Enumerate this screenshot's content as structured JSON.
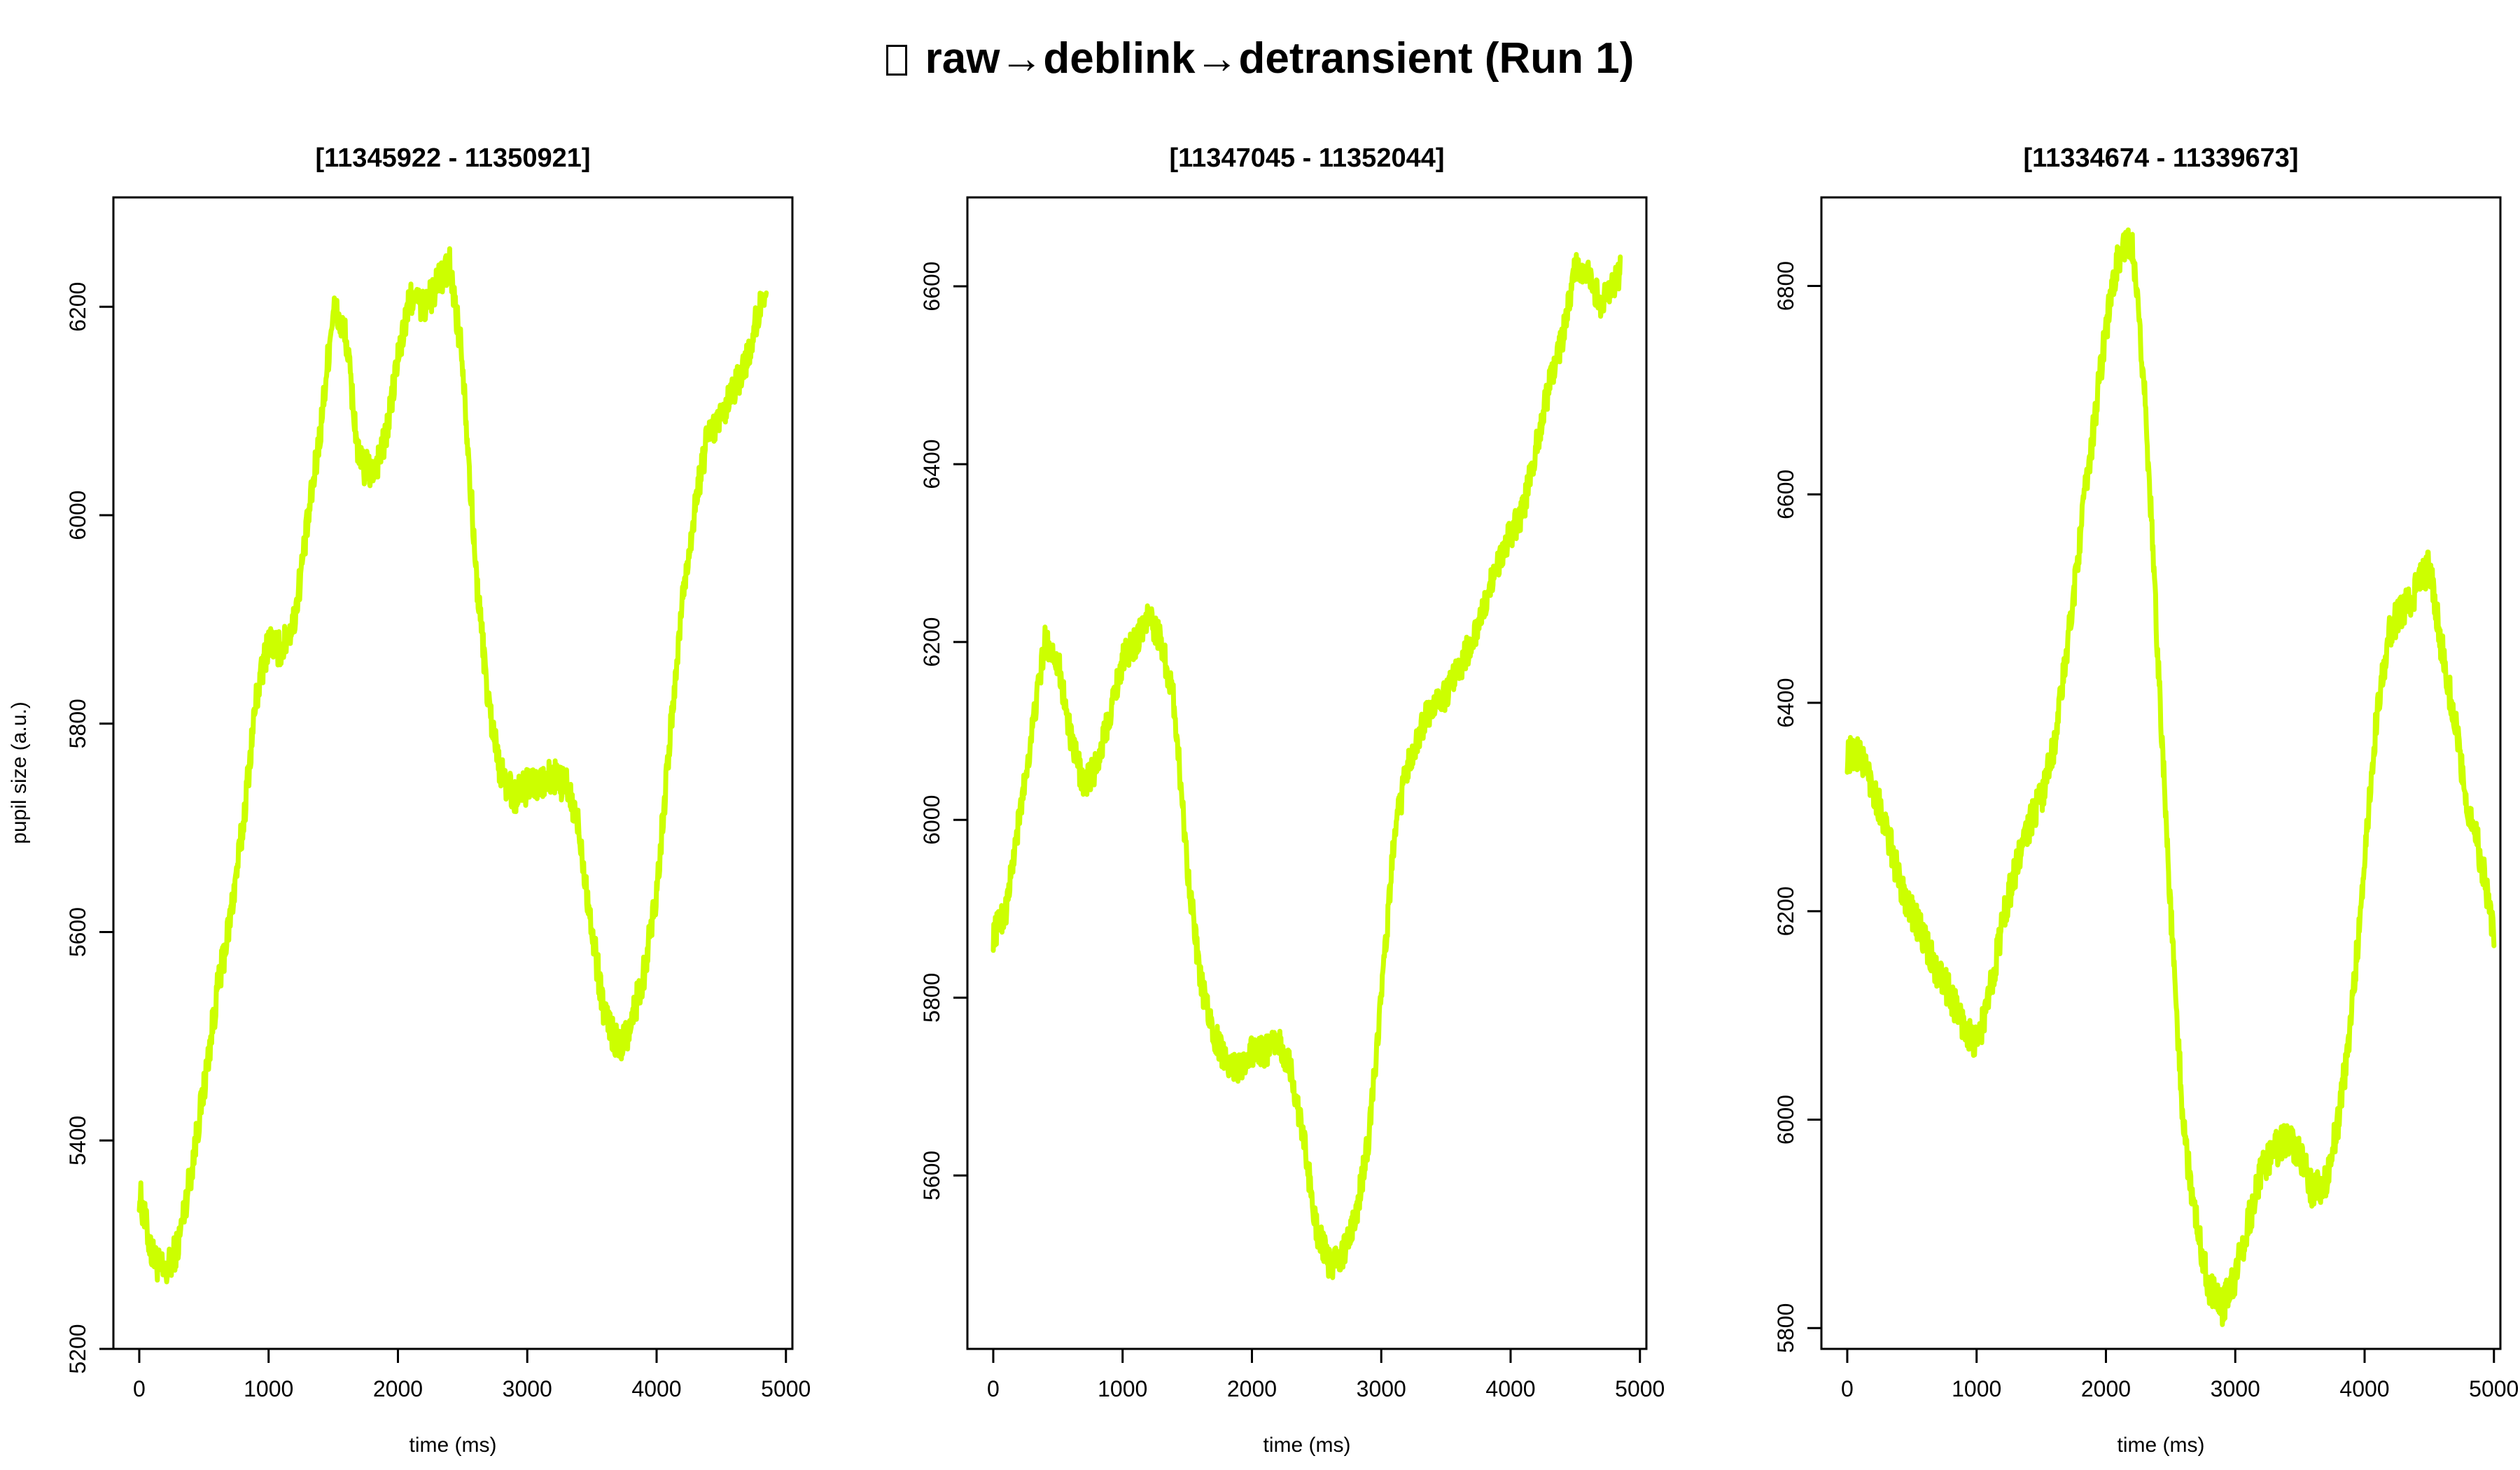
{
  "figure": {
    "title": "raw→deblink→detransient (Run 1)",
    "title_icon": "missing-glyph-icon"
  },
  "colors": {
    "trace": "#ccff00",
    "axes": "#000000",
    "background": "#ffffff"
  },
  "chart_data": [
    {
      "type": "line",
      "title": "[11345922 - 11350921]",
      "xlabel": "time (ms)",
      "ylabel": "pupil size (a.u.)",
      "xlim": [
        -200,
        5050
      ],
      "ylim": [
        5200,
        6305
      ],
      "xticks": [
        "0",
        "1000",
        "2000",
        "3000",
        "4000",
        "5000"
      ],
      "yticks": [
        "5200",
        "5400",
        "5600",
        "5800",
        "6000",
        "6200"
      ],
      "noise": 35,
      "series": [
        {
          "name": "pupil",
          "x": [
            0,
            100,
            200,
            300,
            400,
            500,
            600,
            700,
            800,
            900,
            1000,
            1100,
            1200,
            1300,
            1400,
            1500,
            1600,
            1700,
            1800,
            1900,
            2000,
            2100,
            2200,
            2300,
            2400,
            2500,
            2600,
            2700,
            2800,
            2900,
            3000,
            3100,
            3200,
            3300,
            3400,
            3500,
            3600,
            3700,
            3800,
            3900,
            4000,
            4100,
            4200,
            4300,
            4400,
            4500,
            4600,
            4700,
            4800,
            4850
          ],
          "y": [
            5350,
            5290,
            5270,
            5300,
            5370,
            5450,
            5540,
            5610,
            5700,
            5820,
            5880,
            5870,
            5900,
            5990,
            6080,
            6200,
            6170,
            6050,
            6040,
            6070,
            6150,
            6210,
            6200,
            6220,
            6240,
            6150,
            5950,
            5820,
            5750,
            5730,
            5740,
            5740,
            5750,
            5740,
            5700,
            5600,
            5520,
            5490,
            5510,
            5560,
            5640,
            5780,
            5920,
            6010,
            6080,
            6090,
            6120,
            6150,
            6200,
            6220
          ]
        }
      ]
    },
    {
      "type": "line",
      "title": "[11347045 - 11352044]",
      "xlabel": "time (ms)",
      "ylabel": "",
      "xlim": [
        -200,
        5050
      ],
      "ylim": [
        5405,
        6700
      ],
      "xticks": [
        "0",
        "1000",
        "2000",
        "3000",
        "4000",
        "5000"
      ],
      "yticks": [
        "5600",
        "5800",
        "6000",
        "6200",
        "6400",
        "6600"
      ],
      "noise": 35,
      "series": [
        {
          "name": "pupil",
          "x": [
            0,
            100,
            200,
            300,
            400,
            500,
            600,
            700,
            800,
            900,
            1000,
            1100,
            1200,
            1300,
            1400,
            1500,
            1600,
            1700,
            1800,
            1900,
            2000,
            2100,
            2200,
            2300,
            2400,
            2500,
            2600,
            2700,
            2800,
            2900,
            3000,
            3100,
            3200,
            3300,
            3400,
            3500,
            3600,
            3700,
            3800,
            3900,
            4000,
            4100,
            4200,
            4300,
            4400,
            4500,
            4600,
            4700,
            4800,
            4850
          ],
          "y": [
            5870,
            5900,
            6000,
            6100,
            6200,
            6180,
            6090,
            6040,
            6060,
            6120,
            6180,
            6200,
            6230,
            6200,
            6130,
            5950,
            5820,
            5760,
            5730,
            5720,
            5740,
            5740,
            5750,
            5720,
            5640,
            5540,
            5500,
            5510,
            5550,
            5640,
            5800,
            5980,
            6060,
            6100,
            6130,
            6140,
            6170,
            6200,
            6240,
            6290,
            6320,
            6350,
            6420,
            6490,
            6540,
            6620,
            6610,
            6580,
            6600,
            6620
          ]
        }
      ]
    },
    {
      "type": "line",
      "title": "[11334674 - 11339673]",
      "xlabel": "time (ms)",
      "ylabel": "",
      "xlim": [
        -200,
        5050
      ],
      "ylim": [
        5780,
        6885
      ],
      "xticks": [
        "0",
        "1000",
        "2000",
        "3000",
        "4000",
        "5000"
      ],
      "yticks": [
        "5800",
        "6000",
        "6200",
        "6400",
        "6600",
        "6800"
      ],
      "noise": 35,
      "series": [
        {
          "name": "pupil",
          "x": [
            0,
            100,
            200,
            300,
            400,
            500,
            600,
            700,
            800,
            900,
            1000,
            1100,
            1200,
            1300,
            1400,
            1500,
            1600,
            1700,
            1800,
            1900,
            2000,
            2100,
            2200,
            2300,
            2400,
            2500,
            2600,
            2700,
            2800,
            2900,
            3000,
            3100,
            3200,
            3300,
            3400,
            3500,
            3600,
            3700,
            3800,
            3900,
            4000,
            4100,
            4200,
            4300,
            4400,
            4500,
            4600,
            4700,
            4800,
            4900,
            5000
          ],
          "y": [
            6350,
            6350,
            6320,
            6280,
            6230,
            6200,
            6170,
            6140,
            6120,
            6090,
            6070,
            6120,
            6190,
            6240,
            6280,
            6310,
            6360,
            6450,
            6560,
            6660,
            6760,
            6830,
            6840,
            6700,
            6450,
            6200,
            5990,
            5900,
            5840,
            5820,
            5850,
            5900,
            5950,
            5970,
            5980,
            5970,
            5930,
            5940,
            6000,
            6100,
            6250,
            6400,
            6470,
            6490,
            6510,
            6530,
            6450,
            6380,
            6300,
            6250,
            6180
          ]
        }
      ]
    }
  ]
}
